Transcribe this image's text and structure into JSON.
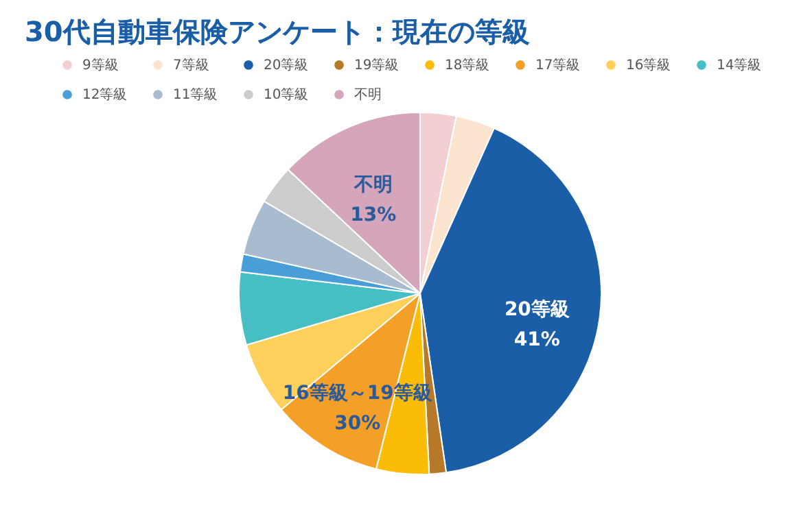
{
  "chart_data": {
    "type": "pie",
    "title": "30代自動車保険アンケート：現在の等級",
    "categories": [
      "9等級",
      "7等級",
      "20等級",
      "19等級",
      "18等級",
      "17等級",
      "16等級",
      "14等級",
      "12等級",
      "11等級",
      "10等級",
      "不明"
    ],
    "values": [
      3.2,
      3.5,
      41,
      1.5,
      4.7,
      10,
      6.5,
      6.5,
      1.6,
      5,
      3.5,
      13
    ],
    "colors": [
      "#f2cfd3",
      "#fbe5d0",
      "#1a5ea8",
      "#b8782a",
      "#fbbc05",
      "#f4a028",
      "#fcd05a",
      "#45bfc3",
      "#4a9ed8",
      "#a9bccf",
      "#cccccc",
      "#d4a5bb"
    ],
    "legend": "top",
    "annotations": [
      {
        "text": "20等級",
        "x": "20等級"
      },
      {
        "text": "41%",
        "x": "20等級"
      },
      {
        "text": "不明",
        "x": "不明"
      },
      {
        "text": "13%",
        "x": "不明"
      },
      {
        "text": "16等級～19等級",
        "x": "17等級"
      },
      {
        "text": "30%",
        "x": "17等級"
      }
    ]
  }
}
